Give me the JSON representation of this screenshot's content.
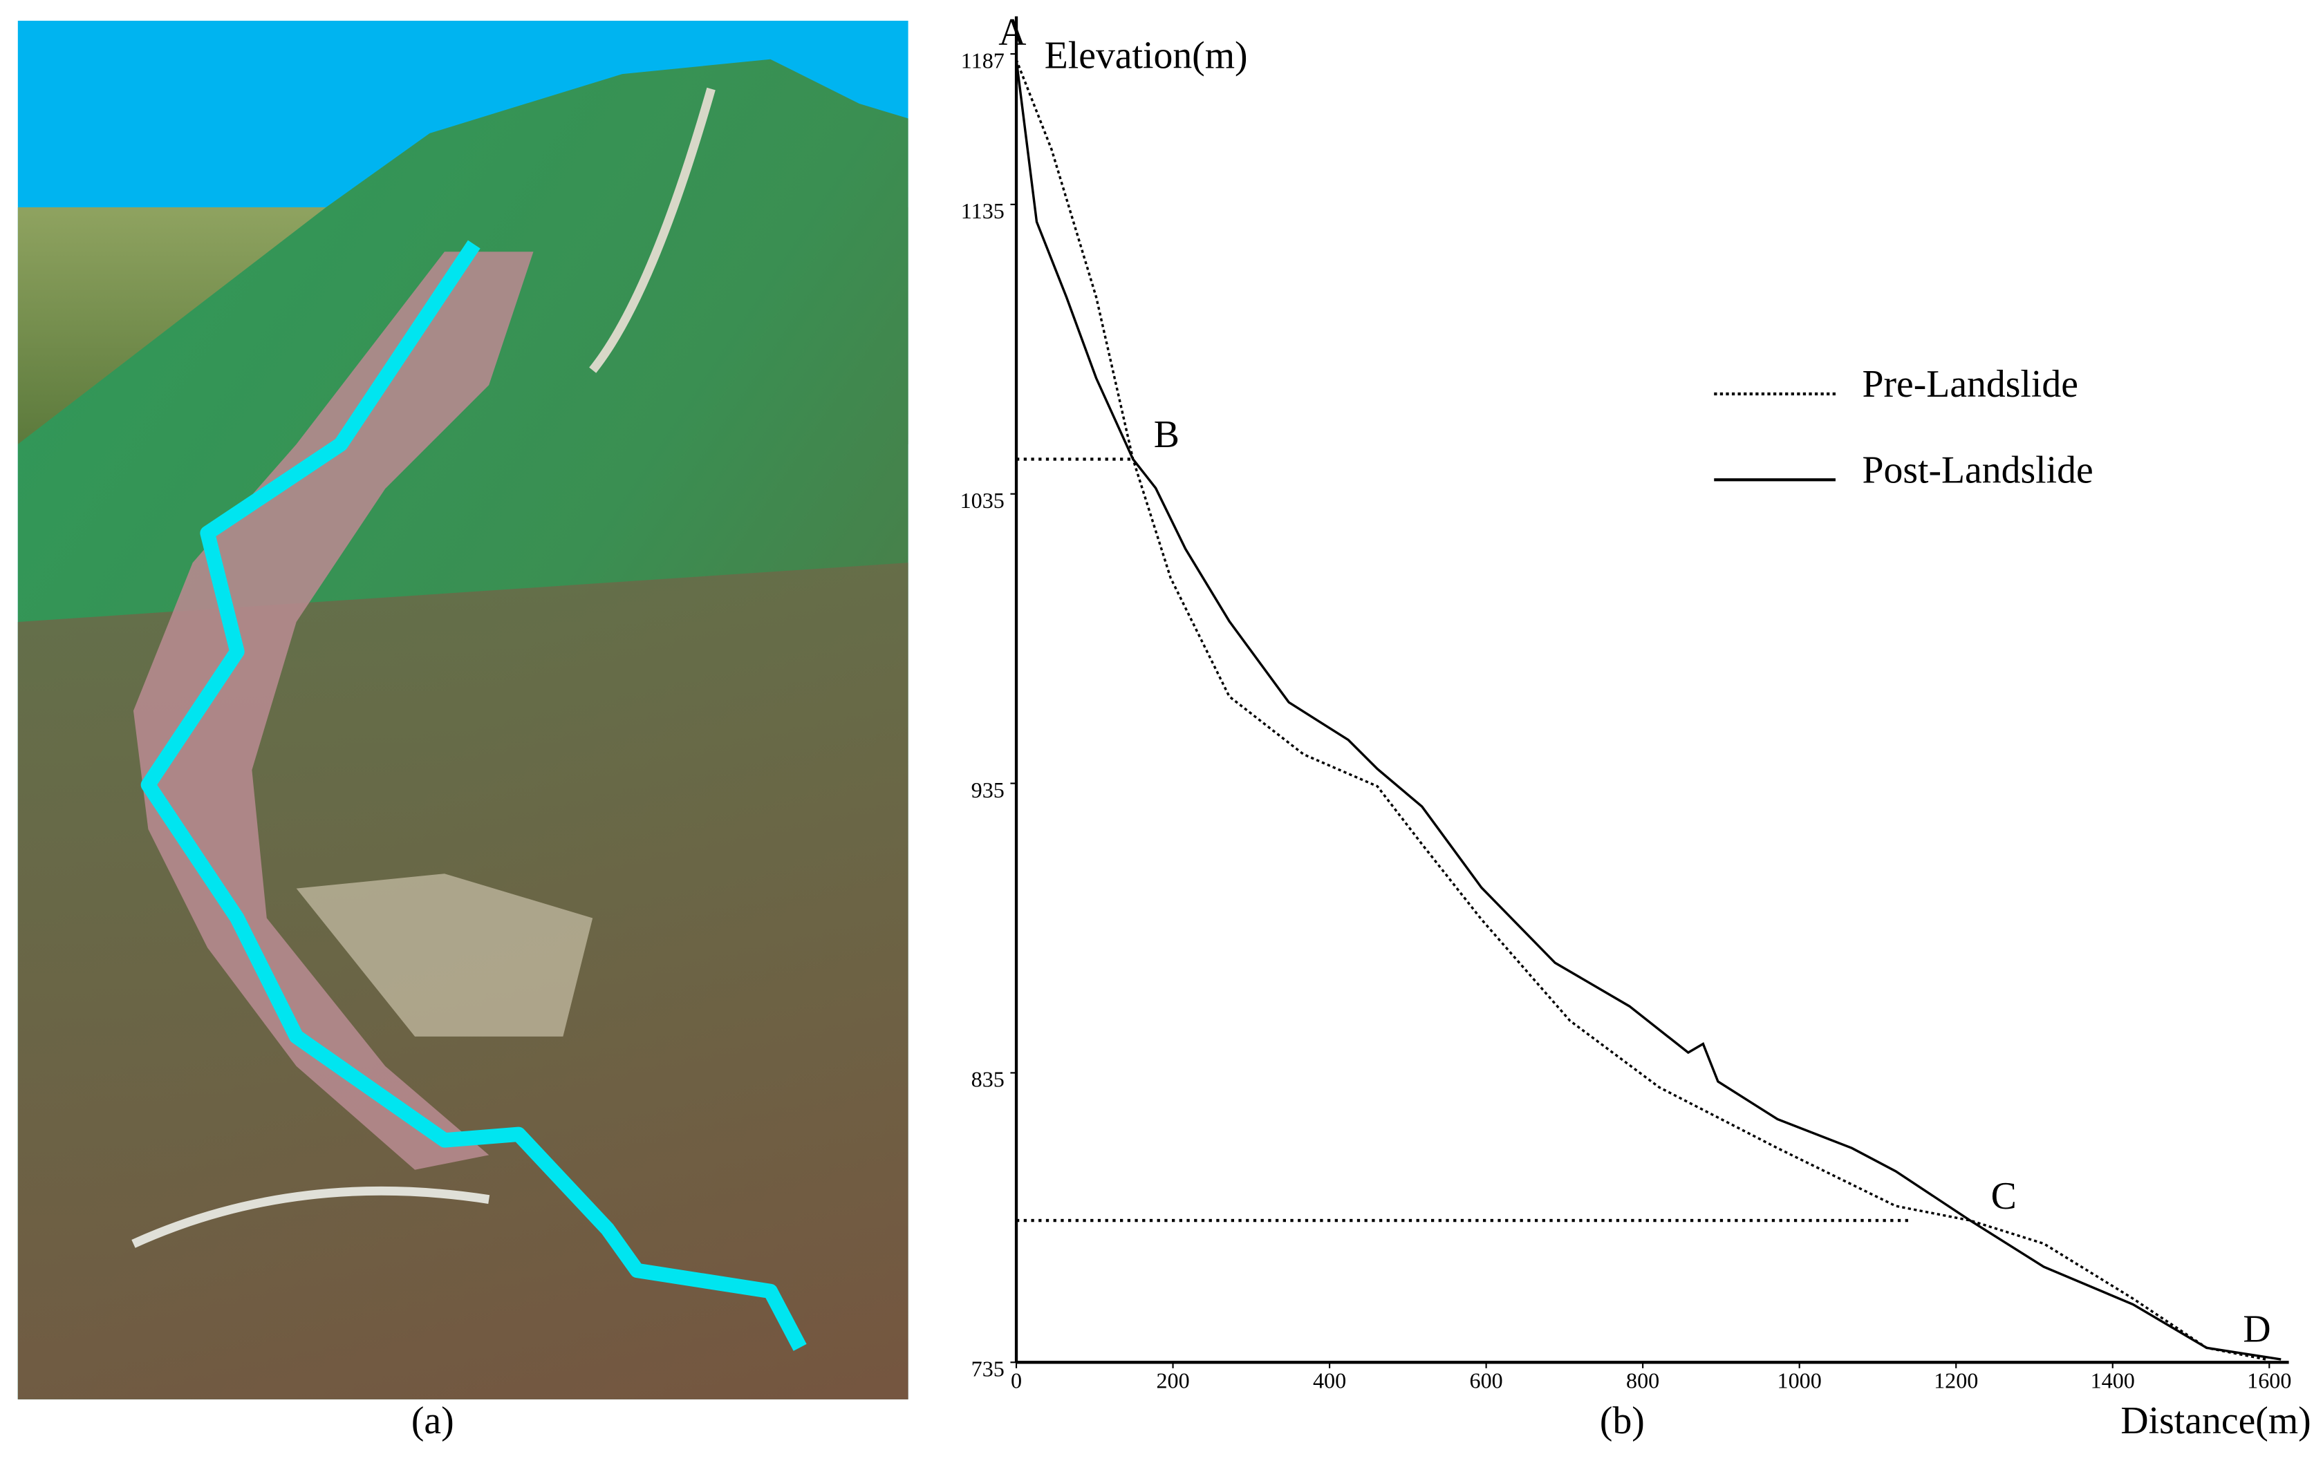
{
  "panel_a": {
    "label": "(a)"
  },
  "chart_data": {
    "type": "line",
    "panel_label": "(b)",
    "y_label": "Elevation(m)",
    "x_label": "Distance(m)",
    "xlim": [
      0,
      1625
    ],
    "ylim": [
      735,
      1200
    ],
    "xticks": [
      0,
      200,
      400,
      600,
      800,
      1000,
      1200,
      1400,
      1600
    ],
    "yticks": [
      735,
      835,
      935,
      1035,
      1135,
      1187
    ],
    "legend": "right",
    "series": [
      {
        "name": "Pre-Landslide",
        "color": "#000000",
        "line_style": "dotted",
        "x": [
          0,
          45,
          102,
          149,
          197,
          272,
          367,
          461,
          518,
          594,
          707,
          821,
          972,
          1123,
          1218,
          1312,
          1426,
          1520,
          1596
        ],
        "values": [
          1185,
          1154,
          1103,
          1047,
          1006,
          965,
          945,
          934,
          914,
          888,
          853,
          830,
          809,
          789,
          784,
          776,
          757,
          740,
          736
        ]
      },
      {
        "name": "Post-Landslide",
        "color": "#000000",
        "line_style": "solid",
        "x": [
          0,
          26,
          64,
          102,
          149,
          178,
          216,
          272,
          348,
          424,
          461,
          518,
          594,
          688,
          783,
          858,
          877,
          896,
          972,
          1067,
          1123,
          1218,
          1312,
          1426,
          1520,
          1615
        ],
        "values": [
          1185,
          1129,
          1103,
          1075,
          1047,
          1037,
          1016,
          991,
          963,
          950,
          940,
          927,
          899,
          873,
          858,
          842,
          845,
          832,
          819,
          809,
          801,
          784,
          768,
          755,
          740,
          736
        ]
      }
    ],
    "points": [
      {
        "label": "A",
        "x": 0,
        "y": 1187
      },
      {
        "label": "B",
        "x": 149,
        "y": 1047
      },
      {
        "label": "C",
        "x": 1218,
        "y": 784
      },
      {
        "label": "D",
        "x": 1540,
        "y": 738
      }
    ],
    "reference_lines": [
      {
        "y": 1047,
        "x_end": 149
      },
      {
        "y": 784,
        "x_end": 1142
      }
    ]
  }
}
